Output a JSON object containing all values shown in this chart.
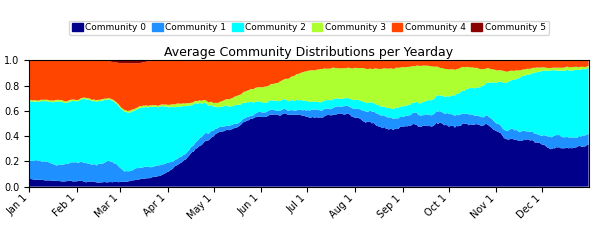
{
  "title": "Average Community Distributions per Yearday",
  "colors": [
    "#00008B",
    "#1E90FF",
    "#00FFFF",
    "#ADFF2F",
    "#FF4500",
    "#8B0000"
  ],
  "labels": [
    "Community 0",
    "Community 1",
    "Community 2",
    "Community 3",
    "Community 4",
    "Community 5"
  ],
  "xtick_labels": [
    "Jan 1",
    "Feb 1",
    "Mar 1",
    "Apr 1",
    "May 1",
    "Jun 1",
    "Jul 1",
    "Aug 1",
    "Sep 1",
    "Oct 1",
    "Nov 1",
    "Dec 1"
  ],
  "xtick_positions": [
    0,
    31,
    59,
    90,
    120,
    151,
    181,
    212,
    243,
    273,
    304,
    334
  ],
  "ylim": [
    0.0,
    1.0
  ],
  "yticks": [
    0.0,
    0.2,
    0.4,
    0.6,
    0.8,
    1.0
  ],
  "figsize": [
    6.0,
    2.25
  ],
  "dpi": 100
}
